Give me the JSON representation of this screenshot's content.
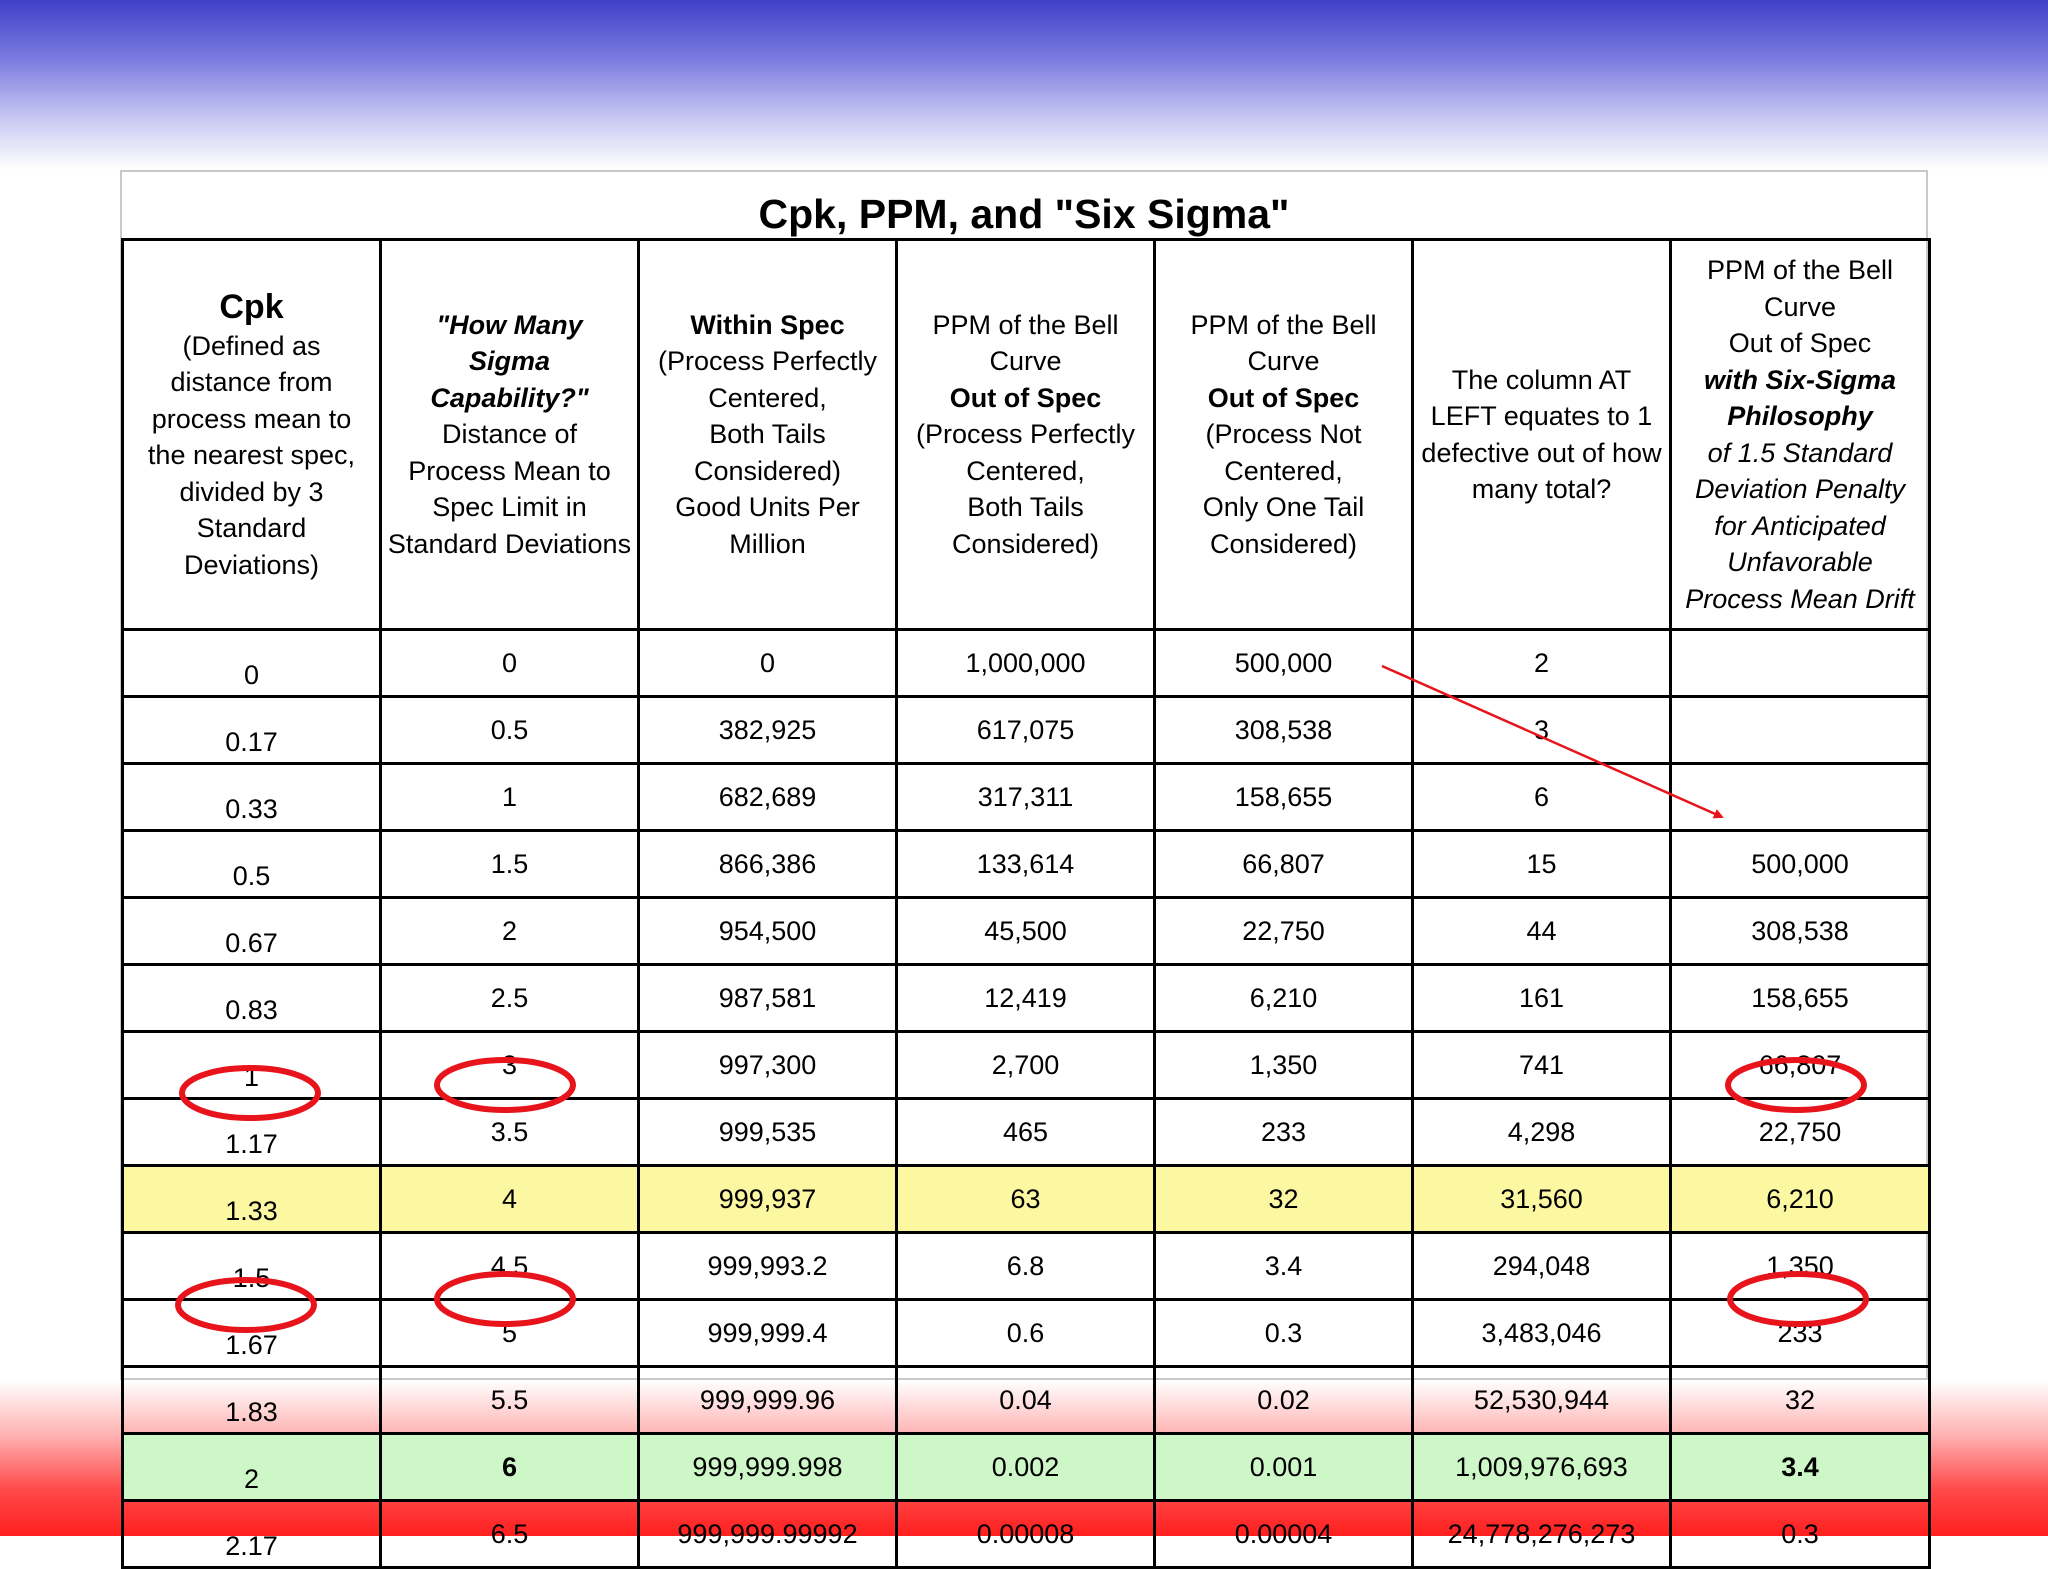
{
  "title": "Cpk, PPM, and \"Six Sigma\"",
  "headers": {
    "cpk": {
      "title": "Cpk",
      "desc": [
        "(Defined as",
        "distance from",
        "process mean to",
        "the nearest spec,",
        "divided by 3",
        "Standard",
        "Deviations)"
      ]
    },
    "sigma": {
      "title_lines": [
        "\"How Many",
        "Sigma",
        "Capability?\""
      ],
      "desc": [
        "Distance of",
        "Process Mean to",
        "Spec Limit in",
        "Standard Deviations"
      ]
    },
    "within": {
      "title": "Within Spec",
      "desc": [
        "(Process Perfectly",
        "Centered,",
        "Both Tails",
        "Considered)",
        "Good Units Per",
        "Million"
      ]
    },
    "ppm_both": {
      "pre": [
        "PPM of the Bell",
        "Curve"
      ],
      "bold": "Out of Spec",
      "desc": [
        "(Process Perfectly",
        "Centered,",
        "Both Tails",
        "Considered)"
      ]
    },
    "ppm_one": {
      "pre": [
        "PPM of the Bell",
        "Curve"
      ],
      "bold": "Out of Spec",
      "desc": [
        "(Process Not",
        "Centered,",
        "Only One Tail",
        "Considered)"
      ]
    },
    "defective": {
      "desc": [
        "The column AT",
        "LEFT equates to 1",
        "defective out of how",
        "many total?"
      ]
    },
    "six_sigma": {
      "pre": [
        "PPM of the Bell",
        "Curve",
        "Out of Spec"
      ],
      "bold": [
        "with Six-Sigma",
        "Philosophy"
      ],
      "italic": [
        "of 1.5 Standard",
        "Deviation Penalty",
        "for Anticipated",
        "Unfavorable",
        "Process Mean Drift"
      ]
    }
  },
  "rows": [
    {
      "cpk": "0",
      "sigma": "0",
      "within": "0",
      "ppm_both": "1,000,000",
      "ppm_one": "500,000",
      "defective": "2",
      "six_sigma": ""
    },
    {
      "cpk": "0.17",
      "sigma": "0.5",
      "within": "382,925",
      "ppm_both": "617,075",
      "ppm_one": "308,538",
      "defective": "3",
      "six_sigma": ""
    },
    {
      "cpk": "0.33",
      "sigma": "1",
      "within": "682,689",
      "ppm_both": "317,311",
      "ppm_one": "158,655",
      "defective": "6",
      "six_sigma": ""
    },
    {
      "cpk": "0.5",
      "sigma": "1.5",
      "within": "866,386",
      "ppm_both": "133,614",
      "ppm_one": "66,807",
      "defective": "15",
      "six_sigma": "500,000"
    },
    {
      "cpk": "0.67",
      "sigma": "2",
      "within": "954,500",
      "ppm_both": "45,500",
      "ppm_one": "22,750",
      "defective": "44",
      "six_sigma": "308,538"
    },
    {
      "cpk": "0.83",
      "sigma": "2.5",
      "within": "987,581",
      "ppm_both": "12,419",
      "ppm_one": "6,210",
      "defective": "161",
      "six_sigma": "158,655"
    },
    {
      "cpk": "1",
      "sigma": "3",
      "within": "997,300",
      "ppm_both": "2,700",
      "ppm_one": "1,350",
      "defective": "741",
      "six_sigma": "66,807"
    },
    {
      "cpk": "1.17",
      "sigma": "3.5",
      "within": "999,535",
      "ppm_both": "465",
      "ppm_one": "233",
      "defective": "4,298",
      "six_sigma": "22,750"
    },
    {
      "cpk": "1.33",
      "sigma": "4",
      "within": "999,937",
      "ppm_both": "63",
      "ppm_one": "32",
      "defective": "31,560",
      "six_sigma": "6,210"
    },
    {
      "cpk": "1.5",
      "sigma": "4.5",
      "within": "999,993.2",
      "ppm_both": "6.8",
      "ppm_one": "3.4",
      "defective": "294,048",
      "six_sigma": "1,350"
    },
    {
      "cpk": "1.67",
      "sigma": "5",
      "within": "999,999.4",
      "ppm_both": "0.6",
      "ppm_one": "0.3",
      "defective": "3,483,046",
      "six_sigma": "233"
    },
    {
      "cpk": "1.83",
      "sigma": "5.5",
      "within": "999,999.96",
      "ppm_both": "0.04",
      "ppm_one": "0.02",
      "defective": "52,530,944",
      "six_sigma": "32"
    },
    {
      "cpk": "2",
      "sigma": "6",
      "within": "999,999.998",
      "ppm_both": "0.002",
      "ppm_one": "0.001",
      "defective": "1,009,976,693",
      "six_sigma": "3.4"
    },
    {
      "cpk": "2.17",
      "sigma": "6.5",
      "within": "999,999.99992",
      "ppm_both": "0.00008",
      "ppm_one": "0.00004",
      "defective": "24,778,276,273",
      "six_sigma": "0.3"
    }
  ],
  "highlights": {
    "yellow_row_color": "#fcf7a1",
    "green_row_color": "#cdf7c7",
    "circle_color": "#e8141c",
    "arrow_color": "#e8141c"
  }
}
